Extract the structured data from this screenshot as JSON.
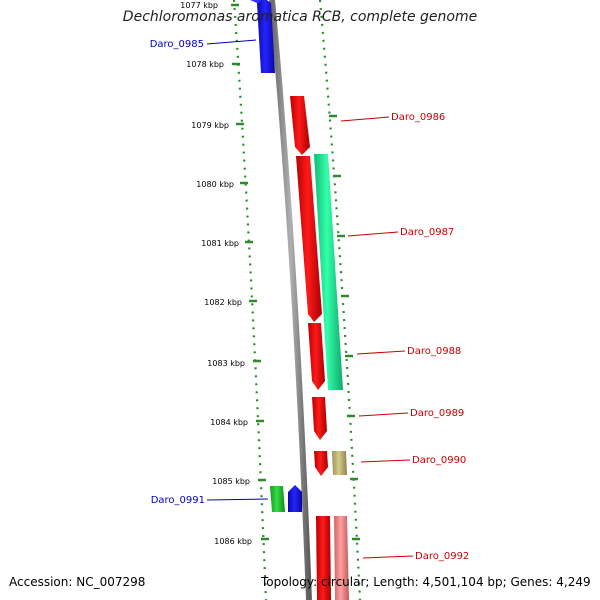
{
  "title": "Dechloromonas aromatica RCB, complete genome",
  "footer": {
    "accession": "Accession: NC_007298",
    "topology": "Topology: circular; Length: 4,501,104 bp; Genes: 4,249"
  },
  "colors": {
    "backbone": "#8a8a8a",
    "ruler": "#2f8a2f",
    "reverse_gene": "#1212dd",
    "forward_gene": "#ee1111",
    "green_gene": "#22bb33",
    "teal_gene": "#22ee99",
    "khaki_gene": "#bbb377",
    "pink_gene": "#ee8888",
    "forward_label": "#cc0000",
    "reverse_label": "#0000bb"
  },
  "ruler_ticks": [
    "1077 kbp",
    "1078 kbp",
    "1079 kbp",
    "1080 kbp",
    "1081 kbp",
    "1082 kbp",
    "1083 kbp",
    "1084 kbp",
    "1085 kbp",
    "1086 kbp"
  ],
  "genes": [
    {
      "label": "Daro_0985",
      "strand": "reverse",
      "color": "reverse_gene"
    },
    {
      "label": "Daro_0986",
      "strand": "forward",
      "color": "forward_gene"
    },
    {
      "label": "Daro_0987",
      "strand": "forward",
      "color": "forward_gene"
    },
    {
      "label": "",
      "strand": "forward",
      "color": "teal_gene"
    },
    {
      "label": "Daro_0988",
      "strand": "forward",
      "color": "forward_gene"
    },
    {
      "label": "Daro_0989",
      "strand": "forward",
      "color": "forward_gene"
    },
    {
      "label": "Daro_0990",
      "strand": "forward",
      "color": "forward_gene"
    },
    {
      "label": "",
      "strand": "forward",
      "color": "khaki_gene"
    },
    {
      "label": "Daro_0991",
      "strand": "reverse",
      "color": "reverse_gene"
    },
    {
      "label": "",
      "strand": "reverse",
      "color": "green_gene"
    },
    {
      "label": "Daro_0992",
      "strand": "forward",
      "color": "forward_gene"
    },
    {
      "label": "",
      "strand": "forward",
      "color": "pink_gene"
    }
  ]
}
